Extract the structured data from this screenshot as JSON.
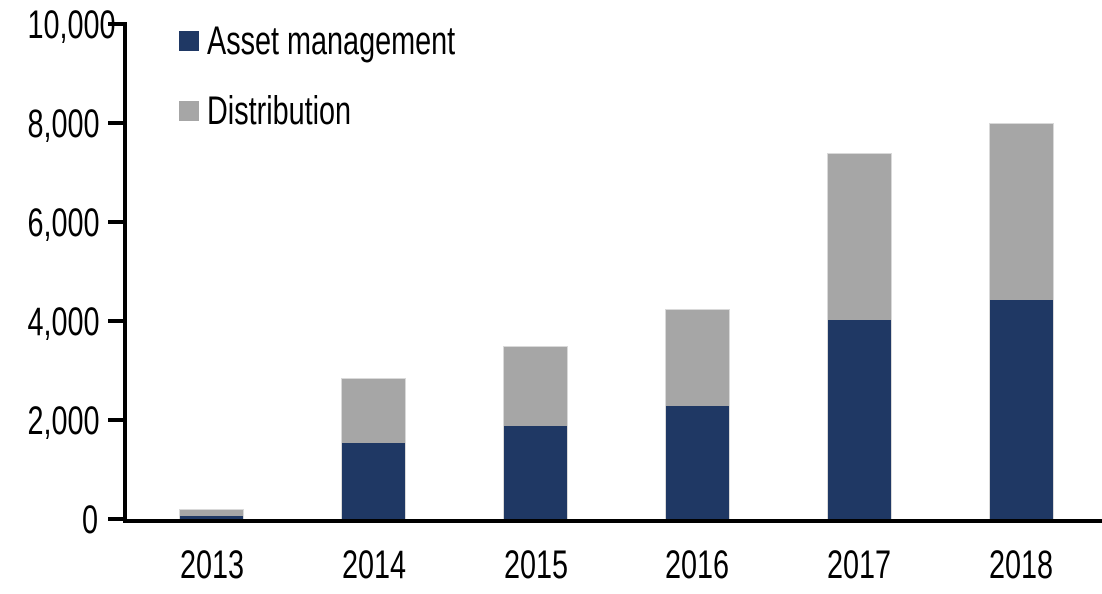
{
  "chart_data": {
    "type": "bar",
    "stacked": true,
    "title": "",
    "xlabel": "",
    "ylabel": "",
    "categories": [
      "2013",
      "2014",
      "2015",
      "2016",
      "2017",
      "2018"
    ],
    "series": [
      {
        "name": "Asset management",
        "color": "#1F3864",
        "values": [
          80,
          1550,
          1900,
          2300,
          4050,
          4450
        ]
      },
      {
        "name": "Distribution",
        "color": "#A6A6A6",
        "values": [
          115,
          1300,
          1600,
          1950,
          3350,
          3550
        ]
      }
    ],
    "totals": [
      195,
      2850,
      3500,
      4250,
      7400,
      8000
    ],
    "ylim": [
      0,
      10000
    ],
    "ytick_interval": 2000,
    "ytick_labels": [
      "0",
      "2,000",
      "4,000",
      "6,000",
      "8,000",
      "10,000"
    ],
    "grid": false,
    "legend_position": "top-left",
    "axis_color": "#000000",
    "bar_edge_color": "#D9D9D9",
    "background_color": "#FFFFFF"
  }
}
